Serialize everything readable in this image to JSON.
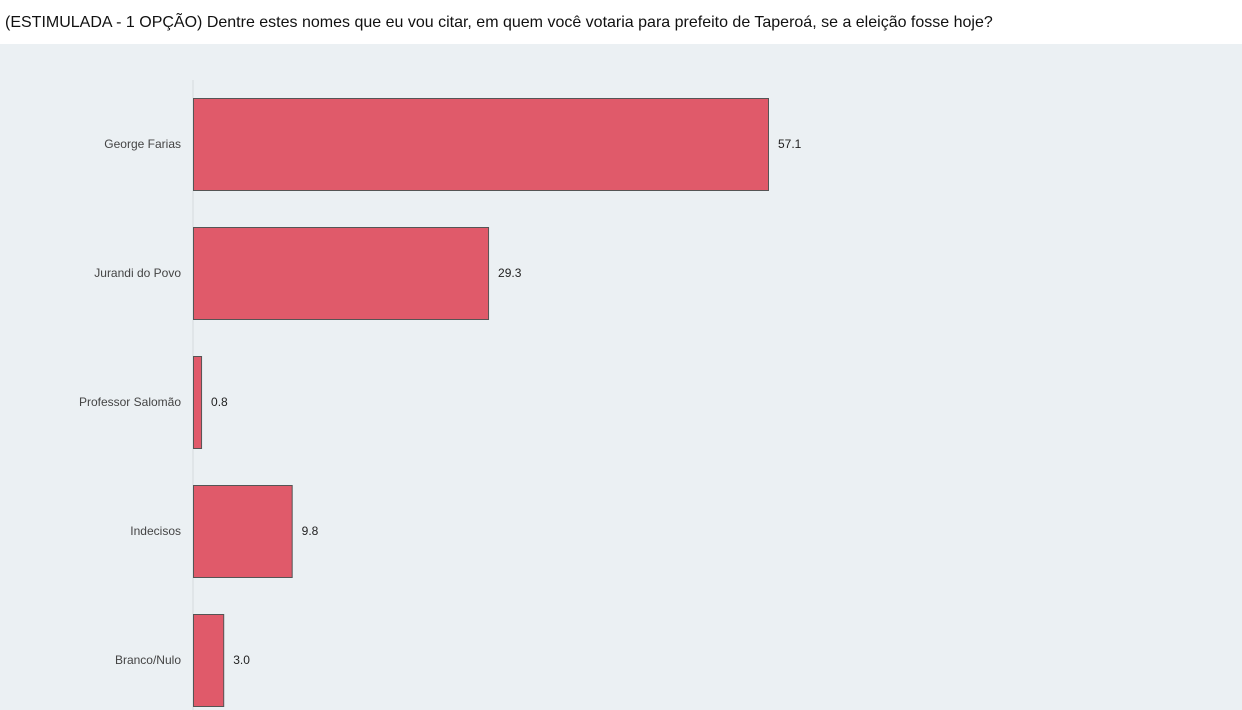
{
  "title": "(ESTIMULADA - 1 OPÇÃO) Dentre estes nomes que eu vou citar, em quem você votaria para prefeito de Taperoá, se a eleição fosse hoje?",
  "colors": {
    "bar_fill": "#e05a6a",
    "bar_stroke": "#555555",
    "axis_line": "#d6dadd",
    "panel_bg": "#ebf0f3"
  },
  "chart_data": {
    "type": "bar",
    "orientation": "horizontal",
    "categories": [
      "George Farias",
      "Jurandi do Povo",
      "Professor Salomão",
      "Indecisos",
      "Branco/Nulo"
    ],
    "values": [
      57.1,
      29.3,
      0.8,
      9.8,
      3.0
    ],
    "value_labels": [
      "57.1",
      "29.3",
      "0.8",
      "9.8",
      "3.0"
    ],
    "xlim": [
      0,
      100
    ],
    "grid": false,
    "legend": "none"
  }
}
